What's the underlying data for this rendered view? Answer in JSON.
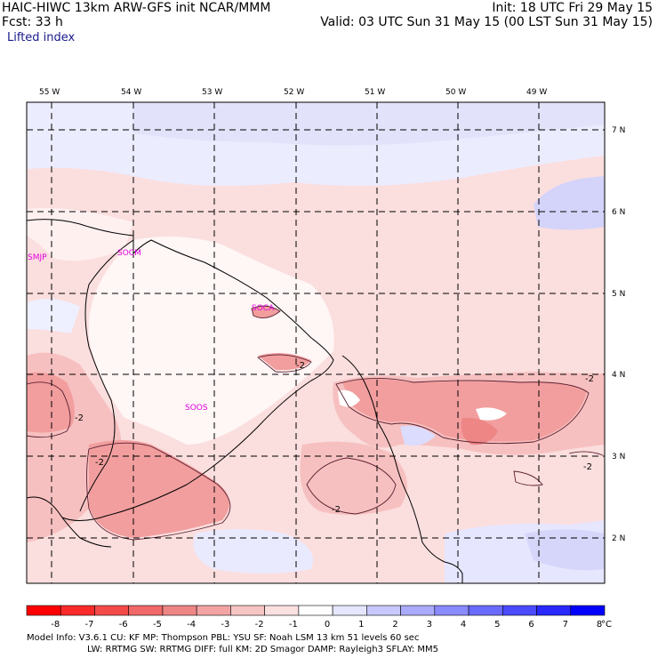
{
  "header": {
    "title": "HAIC-HIWC 13km ARW-GFS init   NCAR/MMM",
    "fcst": "Fcst:    33 h",
    "field": "Lifted index",
    "init": "Init: 18 UTC Fri 29 May 15",
    "valid": "Valid: 03 UTC Sun 31 May 15 (00 LST Sun 31 May 15)"
  },
  "map": {
    "lon_labels": [
      "55 W",
      "54 W",
      "53 W",
      "52 W",
      "51 W",
      "50 W",
      "49 W"
    ],
    "lat_labels": [
      "7 N",
      "6 N",
      "5 N",
      "4 N",
      "3 N",
      "2 N"
    ],
    "stations": [
      "SMJP",
      "SOCM",
      "SOCA",
      "SOOS"
    ],
    "contour_labels": [
      "-2",
      "-2",
      "-2",
      "-2",
      "-2",
      "-2"
    ]
  },
  "colorbar": {
    "ticks": [
      "-8",
      "-7",
      "-6",
      "-5",
      "-4",
      "-3",
      "-2",
      "-1",
      "0",
      "1",
      "2",
      "3",
      "4",
      "5",
      "6",
      "7",
      "8"
    ],
    "unit": "°C",
    "colors": [
      "#ff0000",
      "#fa2a2a",
      "#f54a4a",
      "#f06868",
      "#ee8686",
      "#f2a4a4",
      "#f7c4c4",
      "#fbe0e0",
      "#ffffff",
      "#e6e6ff",
      "#c8c8ff",
      "#aaaaff",
      "#8a8aff",
      "#6a6aff",
      "#4a4aff",
      "#2828ff",
      "#0000ff"
    ]
  },
  "footer": {
    "line1": "Model Info: V3.6.1    CU: KF       MP: Thompson     PBL: YSU       SF: Noah LSM      13 km    51 levels   60 sec",
    "line2": "LW: RRTMG    SW: RRTMG   DIFF: full    KM: 2D Smagor DAMP: Rayleigh3   SFLAY: MM5"
  }
}
